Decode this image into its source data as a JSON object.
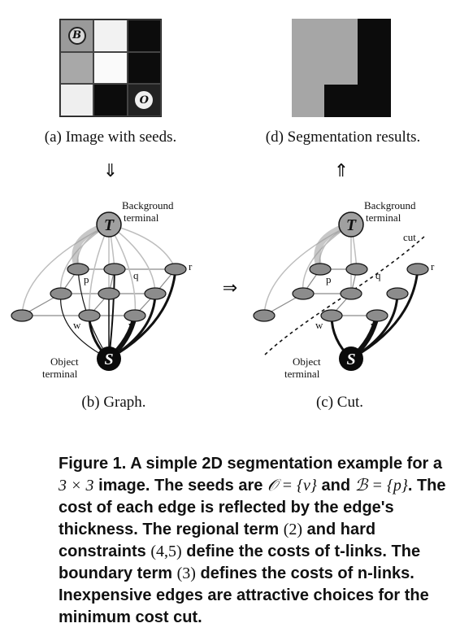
{
  "panels": {
    "a": {
      "caption": "(a) Image with seeds.",
      "cells": [
        "#9a9a9a",
        "#f2f2f2",
        "#0c0c0c",
        "#a8a8a8",
        "#fafafa",
        "#0c0c0c",
        "#efefef",
        "#0c0c0c",
        "#222222"
      ],
      "seed_background": "B",
      "seed_object": "O"
    },
    "d": {
      "caption": "(d) Segmentation results.",
      "gray_color": "#a6a6a6",
      "black_color": "#0c0c0c"
    },
    "b": {
      "caption": "(b) Graph.",
      "background_label_line1": "Background",
      "background_label_line2": "terminal",
      "object_label_line1": "Object",
      "object_label_line2": "terminal",
      "terminal_T": "T",
      "terminal_S": "S",
      "node_p": "p",
      "node_q": "q",
      "node_r": "r",
      "node_w": "w",
      "node_v": "v"
    },
    "c": {
      "caption": "(c) Cut.",
      "cut_label": "cut"
    }
  },
  "arrows": {
    "down": "⇓",
    "up": "⇑",
    "right": "⇒"
  },
  "figure_caption": {
    "label": "Figure 1.",
    "t1": "A simple 2D segmentation example for a",
    "m_three_by_three": "3 × 3",
    "t2": "image. The seeds are",
    "m_O_set": "𝒪 = {v}",
    "t3": "and",
    "m_B_set": "ℬ = {p}",
    "t4": ". The cost of each edge is reflected by the edge's thickness. The regional term",
    "n_2": "(2)",
    "t5": "and hard constraints",
    "n_45": "(4,5)",
    "t6": "define the costs of t-links. The boundary term",
    "n_3": "(3)",
    "t7": "defines the costs of n-links. Inexpensive edges are attractive choices for the minimum cost cut."
  }
}
